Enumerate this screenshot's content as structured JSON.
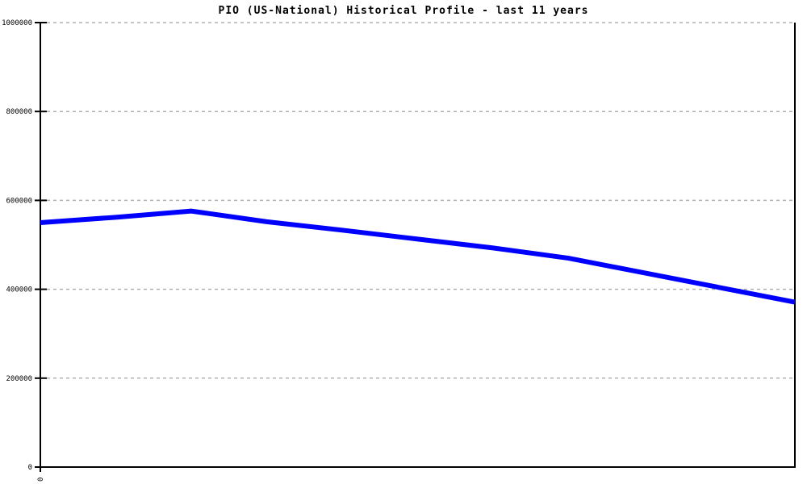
{
  "chart_data": {
    "type": "line",
    "title": "PIO (US-National) Historical Profile - last 11 years",
    "x": [
      0,
      1,
      2,
      3,
      4,
      5,
      6,
      7,
      8,
      9,
      10
    ],
    "values": [
      550000,
      562000,
      576000,
      552000,
      533000,
      513000,
      493000,
      470000,
      437000,
      404000,
      371000
    ],
    "xlabel": "",
    "ylabel": "",
    "ylim": [
      0,
      1000000
    ],
    "y_ticks": [
      0,
      200000,
      400000,
      600000,
      800000,
      1000000
    ],
    "y_tick_labels": [
      "0",
      "200000",
      "400000",
      "600000",
      "800000",
      "1000000"
    ],
    "x_tick_labels": [
      "0"
    ],
    "grid": "horizontal-dashed",
    "legend": "none",
    "colors": {
      "line": "#0000ff",
      "grid": "#b0b0b0",
      "axis": "#000000",
      "text": "#000000",
      "background": "#ffffff"
    }
  }
}
